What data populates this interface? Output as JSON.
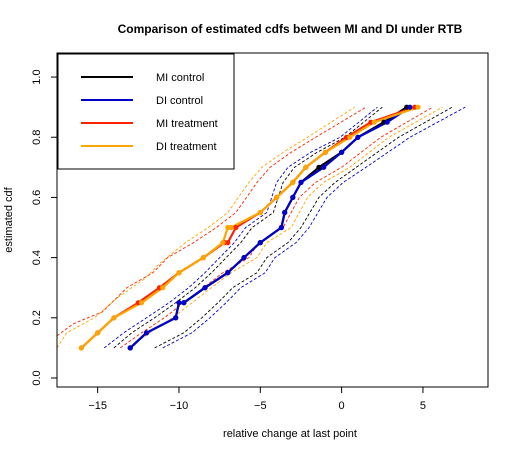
{
  "chart_data": {
    "type": "line",
    "title": "Comparison of estimated cdfs between MI and DI under RTB",
    "xlabel": "relative change at last point",
    "ylabel": "estimated cdf",
    "xlim": [
      -17.5,
      9
    ],
    "ylim": [
      -0.03,
      1.08
    ],
    "xticks": [
      -15,
      -10,
      -5,
      0,
      5
    ],
    "xtick_labels": [
      "−15",
      "−10",
      "−5",
      "0",
      "5"
    ],
    "yticks": [
      0.0,
      0.2,
      0.4,
      0.6,
      0.8,
      1.0
    ],
    "ytick_labels": [
      "0.0",
      "0.2",
      "0.4",
      "0.6",
      "0.8",
      "1.0"
    ],
    "legend_position": "top-left",
    "grid": false,
    "series": [
      {
        "name": "MI control",
        "color": "#000000",
        "style": "solid",
        "x": [
          -13,
          -12,
          -10.2,
          -10,
          -9.7,
          -8.4,
          -7,
          -6,
          -5,
          -3.7,
          -3.5,
          -3,
          -2.5,
          -1.4,
          0,
          1,
          2.6,
          4
        ],
        "y": [
          0.1,
          0.15,
          0.2,
          0.25,
          0.25,
          0.3,
          0.35,
          0.4,
          0.45,
          0.5,
          0.55,
          0.6,
          0.65,
          0.7,
          0.75,
          0.8,
          0.85,
          0.9
        ],
        "confidence_band": {
          "lower_x": [
            -11.5,
            -9.7,
            -8.6,
            -7.6,
            -6.7,
            -5.2,
            -4.6,
            -3.3,
            -2.5,
            -1.4,
            -0.4,
            0.9,
            3.5,
            6.8
          ],
          "lower_y": [
            0.1,
            0.15,
            0.2,
            0.25,
            0.3,
            0.35,
            0.4,
            0.45,
            0.5,
            0.6,
            0.65,
            0.7,
            0.8,
            0.9
          ],
          "upper_x": [
            -14,
            -12.9,
            -11.5,
            -10.2,
            -9,
            -8,
            -6.2,
            -5.5,
            -4.2,
            -3.6,
            -2.9,
            -1.5,
            0.2,
            2.5
          ],
          "upper_y": [
            0.1,
            0.15,
            0.2,
            0.25,
            0.3,
            0.35,
            0.45,
            0.5,
            0.55,
            0.65,
            0.7,
            0.75,
            0.8,
            0.9
          ]
        }
      },
      {
        "name": "DI control",
        "color": "#0000cc",
        "style": "solid",
        "x": [
          -13,
          -12,
          -10.2,
          -10,
          -9.7,
          -8.4,
          -7,
          -6,
          -5,
          -3.7,
          -3.5,
          -3,
          -2.5,
          -1.1,
          0,
          1,
          2.8,
          4.2
        ],
        "y": [
          0.1,
          0.15,
          0.2,
          0.25,
          0.25,
          0.3,
          0.35,
          0.4,
          0.45,
          0.5,
          0.55,
          0.6,
          0.65,
          0.7,
          0.75,
          0.8,
          0.85,
          0.9
        ],
        "confidence_band": {
          "lower_x": [
            -11,
            -9.2,
            -8.1,
            -7.1,
            -6.2,
            -4.7,
            -4.1,
            -2.8,
            -2,
            -0.9,
            0.1,
            1.5,
            4.2,
            7.6
          ],
          "lower_y": [
            0.1,
            0.15,
            0.2,
            0.25,
            0.3,
            0.35,
            0.4,
            0.45,
            0.5,
            0.6,
            0.65,
            0.7,
            0.8,
            0.9
          ],
          "upper_x": [
            -14.6,
            -13.4,
            -12,
            -10.6,
            -9.4,
            -8.4,
            -6.6,
            -5.9,
            -4.6,
            -4,
            -3.3,
            -1.9,
            -0.1,
            2.2
          ],
          "upper_y": [
            0.1,
            0.15,
            0.2,
            0.25,
            0.3,
            0.35,
            0.45,
            0.5,
            0.55,
            0.65,
            0.7,
            0.75,
            0.8,
            0.9
          ]
        }
      },
      {
        "name": "MI treatment",
        "color": "#ff2200",
        "style": "solid",
        "x": [
          -16,
          -15,
          -14,
          -12.5,
          -11.2,
          -10,
          -8.5,
          -7.2,
          -7,
          -6.5,
          -5,
          -4,
          -3,
          -2.2,
          -1,
          0.3,
          1.8,
          4.5
        ],
        "y": [
          0.1,
          0.15,
          0.2,
          0.25,
          0.3,
          0.35,
          0.4,
          0.45,
          0.45,
          0.5,
          0.55,
          0.6,
          0.65,
          0.7,
          0.75,
          0.8,
          0.85,
          0.9
        ],
        "confidence_band": {
          "lower_x": [
            -13.6,
            -12.3,
            -10.9,
            -9.7,
            -8.5,
            -7.3,
            -5.7,
            -5.1,
            -3.6,
            -2.6,
            -1.6,
            0,
            2.4,
            5.6
          ],
          "lower_y": [
            0.1,
            0.15,
            0.2,
            0.25,
            0.3,
            0.35,
            0.4,
            0.45,
            0.5,
            0.6,
            0.65,
            0.7,
            0.8,
            0.9
          ],
          "upper_x": [
            -17.5,
            -16.5,
            -14.7,
            -13.2,
            -11.6,
            -10.7,
            -9.1,
            -7.7,
            -6.5,
            -5.2,
            -4.4,
            -3.1,
            -1.6,
            1.5
          ],
          "upper_y": [
            0.14,
            0.18,
            0.22,
            0.3,
            0.35,
            0.4,
            0.45,
            0.5,
            0.55,
            0.65,
            0.7,
            0.75,
            0.8,
            0.9
          ]
        }
      },
      {
        "name": "DI treatment",
        "color": "#ffa500",
        "style": "solid",
        "x": [
          -16,
          -15,
          -14,
          -12.3,
          -11,
          -10,
          -8.5,
          -7.3,
          -7,
          -6.8,
          -5,
          -4,
          -3,
          -2.2,
          -1,
          0.5,
          2,
          4.7
        ],
        "y": [
          0.1,
          0.15,
          0.2,
          0.25,
          0.3,
          0.35,
          0.4,
          0.45,
          0.5,
          0.5,
          0.55,
          0.6,
          0.65,
          0.7,
          0.75,
          0.8,
          0.85,
          0.9
        ],
        "confidence_band": {
          "lower_x": [
            -13.1,
            -11.8,
            -10.4,
            -9.2,
            -8,
            -6.8,
            -5.2,
            -4.6,
            -3.1,
            -2.1,
            -1.1,
            0.5,
            2.9,
            6.2
          ],
          "lower_y": [
            0.1,
            0.15,
            0.2,
            0.25,
            0.3,
            0.35,
            0.4,
            0.45,
            0.5,
            0.6,
            0.65,
            0.7,
            0.8,
            0.9
          ],
          "upper_x": [
            -17.5,
            -16.9,
            -15.2,
            -13.7,
            -12.1,
            -11.2,
            -9.6,
            -8.2,
            -7,
            -5.7,
            -4.9,
            -3.6,
            -2.1,
            0.8
          ],
          "upper_y": [
            0.1,
            0.15,
            0.2,
            0.27,
            0.33,
            0.38,
            0.45,
            0.5,
            0.55,
            0.65,
            0.7,
            0.75,
            0.8,
            0.9
          ]
        }
      }
    ]
  }
}
